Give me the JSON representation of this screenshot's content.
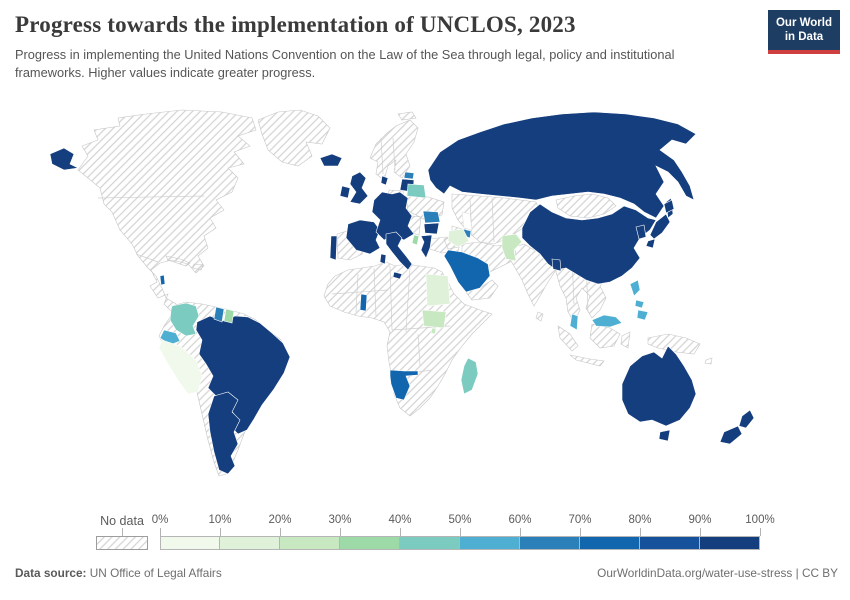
{
  "header": {
    "title": "Progress towards the implementation of UNCLOS, 2023",
    "subtitle": "Progress in implementing the United Nations Convention on the Law of the Sea through legal, policy and institutional frameworks. Higher values indicate greater progress.",
    "logo_line1": "Our World",
    "logo_line2": "in Data",
    "logo_bg": "#1d3d63",
    "logo_accent": "#cf3f3f"
  },
  "legend": {
    "no_data_label": "No data",
    "tick_labels": [
      "0%",
      "10%",
      "20%",
      "30%",
      "40%",
      "50%",
      "60%",
      "70%",
      "80%",
      "90%",
      "100%"
    ],
    "bin_colors": [
      "#f0f9eb",
      "#dff1d9",
      "#c8e8c2",
      "#9ed9a8",
      "#7ccbc1",
      "#4fafd3",
      "#2c80b9",
      "#1266ae",
      "#15529b",
      "#153e7e"
    ],
    "hatch_line_color": "#d2d2d2",
    "nodata_border_color": "#9d9d9d"
  },
  "map": {
    "border_color_nodata": "#c6c6c6",
    "border_color_colored": "#ffffff",
    "values": {
      "russia": 9,
      "iceland": 9,
      "united-kingdom": 9,
      "ireland": 9,
      "france": 9,
      "portugal": 9,
      "central-europe": 9,
      "denmark": 9,
      "italy": 9,
      "greece": 9,
      "bulgaria": 9,
      "romania": 6,
      "estonia": 6,
      "latvia-lithuania": 9,
      "belarus": 4,
      "albania": 3,
      "china": 9,
      "japan": 9,
      "south-korea": 9,
      "bangladesh": 9,
      "azerbaijan": 6,
      "iraq": 1,
      "saudi-arabia": 7,
      "pakistan": 2,
      "egypt": 1,
      "south-sudan": 2,
      "rwanda": 2,
      "ghana": 7,
      "namibia": 7,
      "madagascar": 4,
      "philippines": 5,
      "malaysia": 5,
      "australia": 9,
      "new-zealand": 9,
      "brazil": 9,
      "argentina": 9,
      "panama": 9,
      "belize": 7,
      "colombia": 4,
      "ecuador": 5,
      "peru": 0,
      "guyana": 6,
      "suriname": 3
    },
    "no_data": [
      "north-america",
      "greenland",
      "svalbard",
      "cuba",
      "hispaniola",
      "scandinavia",
      "spain",
      "poland",
      "ukraine",
      "west-balkans",
      "turkey",
      "africa-mainland",
      "south-america-other",
      "kazakhstan-central-asia",
      "iran-afghanistan",
      "caucasus",
      "yemen-oman",
      "levant",
      "india",
      "sri-lanka",
      "mongolia",
      "north-korea",
      "se-asia-mainland",
      "indonesia",
      "new-guinea",
      "pacific-islands"
    ]
  },
  "footer": {
    "datasource_label": "Data source:",
    "datasource_value": " UN Office of Legal Affairs",
    "right_text": "OurWorldinData.org/water-use-stress | CC BY"
  }
}
